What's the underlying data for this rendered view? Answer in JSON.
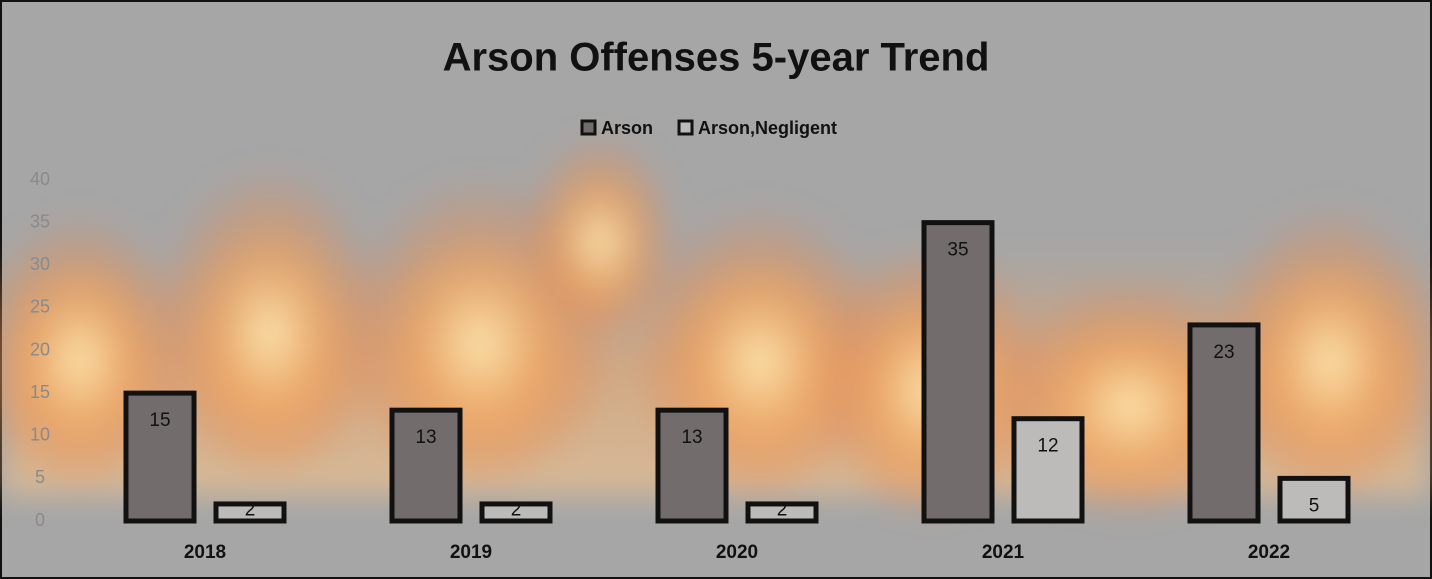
{
  "chart_data": {
    "type": "bar",
    "title": "Arson Offenses 5-year Trend",
    "categories": [
      "2018",
      "2019",
      "2020",
      "2021",
      "2022"
    ],
    "series": [
      {
        "name": "Arson",
        "color": "#736c6c",
        "values": [
          15,
          13,
          13,
          35,
          23
        ]
      },
      {
        "name": "Arson,Negligent",
        "color": "#bdbaba",
        "values": [
          2,
          2,
          2,
          12,
          5
        ]
      }
    ],
    "ylim": [
      0,
      40
    ],
    "yticks": [
      0,
      5,
      10,
      15,
      20,
      25,
      30,
      35,
      40
    ],
    "grid": false,
    "legend": "top"
  }
}
